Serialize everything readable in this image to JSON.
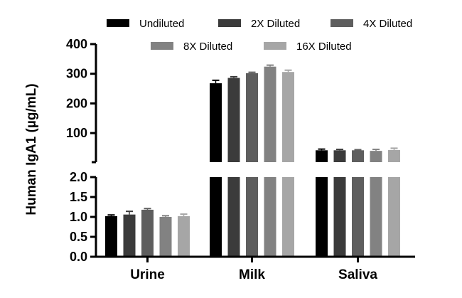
{
  "chart_data": {
    "type": "bar",
    "ylabel": "Human IgA1 (µg/mL)",
    "categories": [
      "Urine",
      "Milk",
      "Saliva"
    ],
    "series": [
      {
        "name": "Undiluted",
        "color": "#000000",
        "values": [
          1.02,
          268,
          42
        ],
        "errors": [
          0.03,
          10,
          4
        ]
      },
      {
        "name": "2X Diluted",
        "color": "#3b3b3b",
        "values": [
          1.06,
          286,
          42
        ],
        "errors": [
          0.08,
          4,
          3
        ]
      },
      {
        "name": "4X Diluted",
        "color": "#5e5e5e",
        "values": [
          1.18,
          302,
          42
        ],
        "errors": [
          0.03,
          3,
          2
        ]
      },
      {
        "name": "8X Diluted",
        "color": "#828282",
        "values": [
          1.0,
          324,
          40
        ],
        "errors": [
          0.03,
          5,
          5
        ]
      },
      {
        "name": "16X Diluted",
        "color": "#a6a6a6",
        "values": [
          1.02,
          306,
          43
        ],
        "errors": [
          0.05,
          6,
          6
        ]
      }
    ],
    "y_axis_segments": [
      {
        "range": [
          0,
          2.0
        ],
        "ticks": [
          "0.0",
          "0.5",
          "1.0",
          "1.5",
          "2.0"
        ]
      },
      {
        "range": [
          2.0,
          400
        ],
        "ticks": [
          "100",
          "200",
          "300",
          "400"
        ]
      }
    ],
    "legend_position": "top",
    "grid": false
  }
}
